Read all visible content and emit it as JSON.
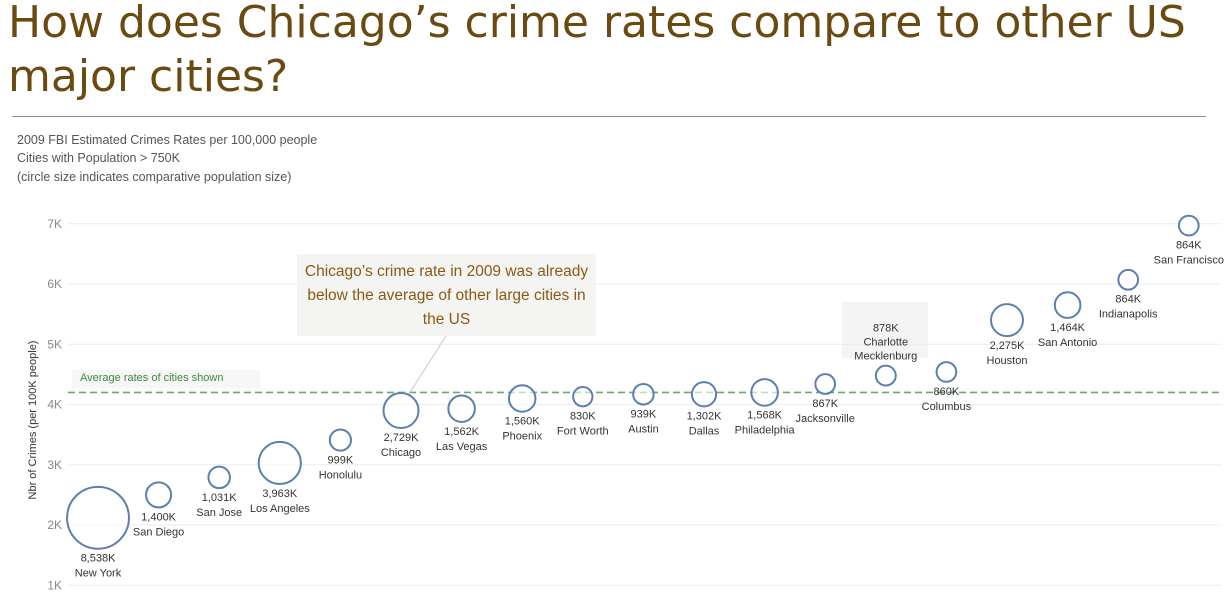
{
  "title": "How does Chicago’s crime rates compare to other US major cities?",
  "subtitle_lines": [
    "2009 FBI Estimated Crimes Rates per 100,000 people",
    "Cities with Population > 750K",
    "(circle size indicates comparative population size)"
  ],
  "callout_text": "Chicago’s crime rate in 2009 was already below the average of other large cities in the US",
  "average_label": "Average rates of cities shown",
  "colors": {
    "title": "#6b4a12",
    "circle": "#5b7fae",
    "average_line": "#6aaa6a",
    "callout_text": "#8a5a14"
  },
  "chart_data": {
    "type": "scatter",
    "ylabel": "Nbr of Crimes (per 100K people)",
    "ylim": [
      1000,
      7200
    ],
    "yticks": [
      "1K",
      "2K",
      "3K",
      "4K",
      "5K",
      "6K",
      "7K"
    ],
    "ytick_values": [
      1000,
      2000,
      3000,
      4000,
      5000,
      6000,
      7000
    ],
    "average_rate": 4200,
    "grid": true,
    "points": [
      {
        "city": "New York",
        "population_label": "8,538K",
        "population": 8538,
        "rate": 2120
      },
      {
        "city": "San Diego",
        "population_label": "1,400K",
        "population": 1400,
        "rate": 2500
      },
      {
        "city": "San Jose",
        "population_label": "1,031K",
        "population": 1031,
        "rate": 2790
      },
      {
        "city": "Los Angeles",
        "population_label": "3,963K",
        "population": 3963,
        "rate": 3030
      },
      {
        "city": "Honolulu",
        "population_label": "999K",
        "population": 999,
        "rate": 3410
      },
      {
        "city": "Chicago",
        "population_label": "2,729K",
        "population": 2729,
        "rate": 3900
      },
      {
        "city": "Las Vegas",
        "population_label": "1,562K",
        "population": 1562,
        "rate": 3930
      },
      {
        "city": "Phoenix",
        "population_label": "1,560K",
        "population": 1560,
        "rate": 4100
      },
      {
        "city": "Fort Worth",
        "population_label": "830K",
        "population": 830,
        "rate": 4130
      },
      {
        "city": "Austin",
        "population_label": "939K",
        "population": 939,
        "rate": 4170
      },
      {
        "city": "Dallas",
        "population_label": "1,302K",
        "population": 1302,
        "rate": 4170
      },
      {
        "city": "Philadelphia",
        "population_label": "1,568K",
        "population": 1568,
        "rate": 4200
      },
      {
        "city": "Jacksonville",
        "population_label": "867K",
        "population": 867,
        "rate": 4340
      },
      {
        "city": "Charlotte Mecklenburg",
        "population_label": "878K",
        "population": 878,
        "rate": 4480
      },
      {
        "city": "Columbus",
        "population_label": "860K",
        "population": 860,
        "rate": 4540
      },
      {
        "city": "Houston",
        "population_label": "2,275K",
        "population": 2275,
        "rate": 5400
      },
      {
        "city": "San Antonio",
        "population_label": "1,464K",
        "population": 1464,
        "rate": 5650
      },
      {
        "city": "Indianapolis",
        "population_label": "864K",
        "population": 864,
        "rate": 6070
      },
      {
        "city": "San Francisco",
        "population_label": "864K",
        "population": 864,
        "rate": 6970
      }
    ]
  }
}
